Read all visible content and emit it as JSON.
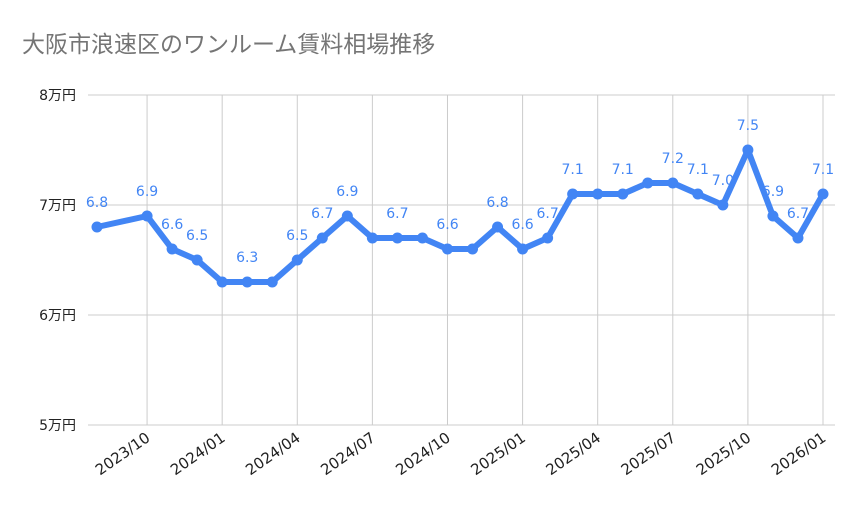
{
  "chart_data": {
    "type": "line",
    "title": "大阪市浪速区のワンルーム賃料相場推移",
    "xlabel": "",
    "ylabel": "",
    "ylim": [
      5,
      8
    ],
    "yticks": [
      {
        "value": 5,
        "label": "5万円"
      },
      {
        "value": 6,
        "label": "6万円"
      },
      {
        "value": 7,
        "label": "7万円"
      },
      {
        "value": 8,
        "label": "8万円"
      }
    ],
    "xticks": [
      "2023/10",
      "2024/01",
      "2024/04",
      "2024/07",
      "2024/10",
      "2025/01",
      "2025/04",
      "2025/07",
      "2025/10",
      "2026/01"
    ],
    "grid": true,
    "color": "#4285f4",
    "points": [
      {
        "x": "2023/08",
        "y": 6.8,
        "label": "6.8"
      },
      {
        "x": "2023/10",
        "y": 6.9,
        "label": "6.9"
      },
      {
        "x": "2023/11",
        "y": 6.6,
        "label": "6.6"
      },
      {
        "x": "2023/12",
        "y": 6.5,
        "label": "6.5"
      },
      {
        "x": "2024/01",
        "y": 6.3
      },
      {
        "x": "2024/02",
        "y": 6.3,
        "label": "6.3"
      },
      {
        "x": "2024/03",
        "y": 6.3
      },
      {
        "x": "2024/04",
        "y": 6.5,
        "label": "6.5"
      },
      {
        "x": "2024/05",
        "y": 6.7,
        "label": "6.7"
      },
      {
        "x": "2024/06",
        "y": 6.9,
        "label": "6.9"
      },
      {
        "x": "2024/07",
        "y": 6.7
      },
      {
        "x": "2024/08",
        "y": 6.7,
        "label": "6.7"
      },
      {
        "x": "2024/09",
        "y": 6.7
      },
      {
        "x": "2024/10",
        "y": 6.6,
        "label": "6.6"
      },
      {
        "x": "2024/11",
        "y": 6.6
      },
      {
        "x": "2024/12",
        "y": 6.8,
        "label": "6.8"
      },
      {
        "x": "2025/01",
        "y": 6.6,
        "label": "6.6"
      },
      {
        "x": "2025/02",
        "y": 6.7,
        "label": "6.7"
      },
      {
        "x": "2025/03",
        "y": 7.1,
        "label": "7.1"
      },
      {
        "x": "2025/04",
        "y": 7.1
      },
      {
        "x": "2025/05",
        "y": 7.1,
        "label": "7.1"
      },
      {
        "x": "2025/06",
        "y": 7.2
      },
      {
        "x": "2025/07",
        "y": 7.2,
        "label": "7.2"
      },
      {
        "x": "2025/08",
        "y": 7.1,
        "label": "7.1"
      },
      {
        "x": "2025/09",
        "y": 7.0,
        "label": "7.0"
      },
      {
        "x": "2025/10",
        "y": 7.5,
        "label": "7.5"
      },
      {
        "x": "2025/11",
        "y": 6.9,
        "label": "6.9"
      },
      {
        "x": "2025/12",
        "y": 6.7,
        "label": "6.7"
      },
      {
        "x": "2026/01",
        "y": 7.1,
        "label": "7.1"
      }
    ]
  }
}
